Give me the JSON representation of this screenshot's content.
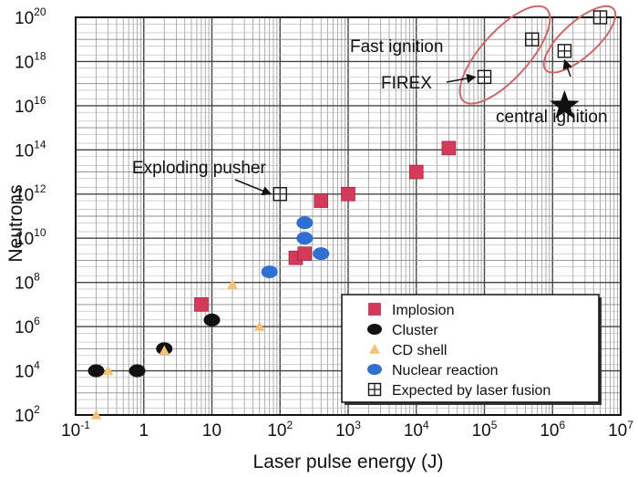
{
  "chart_data": {
    "type": "scatter",
    "xlabel": "Laser pulse energy (J)",
    "ylabel": "Neutrons",
    "x_scale": "log",
    "y_scale": "log",
    "xlim": [
      0.1,
      10000000
    ],
    "ylim": [
      100,
      100000000000000000000
    ],
    "grid": true,
    "legend_position": "bottom-right",
    "x_ticks": [
      {
        "base": "10",
        "exp": "-1"
      },
      {
        "base": "1",
        "exp": ""
      },
      {
        "base": "10",
        "exp": ""
      },
      {
        "base": "10",
        "exp": "2"
      },
      {
        "base": "10",
        "exp": "3"
      },
      {
        "base": "10",
        "exp": "4"
      },
      {
        "base": "10",
        "exp": "5"
      },
      {
        "base": "10",
        "exp": "6"
      },
      {
        "base": "10",
        "exp": "7"
      }
    ],
    "y_ticks": [
      {
        "base": "10",
        "exp": "2"
      },
      {
        "base": "10",
        "exp": "4"
      },
      {
        "base": "10",
        "exp": "6"
      },
      {
        "base": "10",
        "exp": "8"
      },
      {
        "base": "10",
        "exp": "10"
      },
      {
        "base": "10",
        "exp": "12"
      },
      {
        "base": "10",
        "exp": "14"
      },
      {
        "base": "10",
        "exp": "16"
      },
      {
        "base": "10",
        "exp": "18"
      },
      {
        "base": "10",
        "exp": "20"
      }
    ],
    "series": [
      {
        "name": "Implosion",
        "marker": "square",
        "color": "#d63a5a",
        "points": [
          [
            7,
            10000000.0
          ],
          [
            170,
            1300000000.0
          ],
          [
            230,
            2000000000.0
          ],
          [
            400,
            500000000000.0
          ],
          [
            1000,
            1000000000000.0
          ],
          [
            10000,
            10000000000000.0
          ],
          [
            30000,
            120000000000000.0
          ]
        ]
      },
      {
        "name": "Cluster",
        "marker": "circle",
        "color": "#111111",
        "points": [
          [
            0.2,
            10000.0
          ],
          [
            0.8,
            10000.0
          ],
          [
            2,
            100000.0
          ],
          [
            10,
            2000000.0
          ]
        ]
      },
      {
        "name": "CD shell",
        "marker": "triangle",
        "color": "#f2c27a",
        "points": [
          [
            0.2,
            100
          ],
          [
            0.3,
            10000.0
          ],
          [
            2,
            80000.0
          ],
          [
            20,
            80000000.0
          ],
          [
            50,
            1000000.0
          ]
        ]
      },
      {
        "name": "Nuclear reaction",
        "marker": "circle",
        "color": "#2f6fd0",
        "points": [
          [
            70,
            300000000.0
          ],
          [
            230,
            50000000000.0
          ],
          [
            230,
            10000000000.0
          ],
          [
            400,
            2000000000.0
          ]
        ]
      },
      {
        "name": "Expected by laser fusion",
        "marker": "square-plus",
        "color": "#111111",
        "points": [
          [
            100,
            1000000000000.0
          ],
          [
            100000,
            2e+17
          ],
          [
            500000,
            1e+19
          ],
          [
            1500000,
            3e+18
          ],
          [
            5000000,
            1e+20
          ]
        ]
      }
    ],
    "annotations": {
      "fast_ignition": "Fast ignition",
      "firex": "FIREX",
      "central_ignition": "central ignition",
      "exploding_pusher": "Exploding pusher"
    },
    "central_ignition_star": [
      1500000,
      1e+16
    ],
    "colors": {
      "implosion": "#d63a5a",
      "cluster": "#111111",
      "cd_shell": "#f2c27a",
      "nuclear_reaction": "#2f6fd0",
      "expected": "#111111",
      "firex_label": "#2a9fd8",
      "ellipse": "#c96a6a"
    }
  }
}
